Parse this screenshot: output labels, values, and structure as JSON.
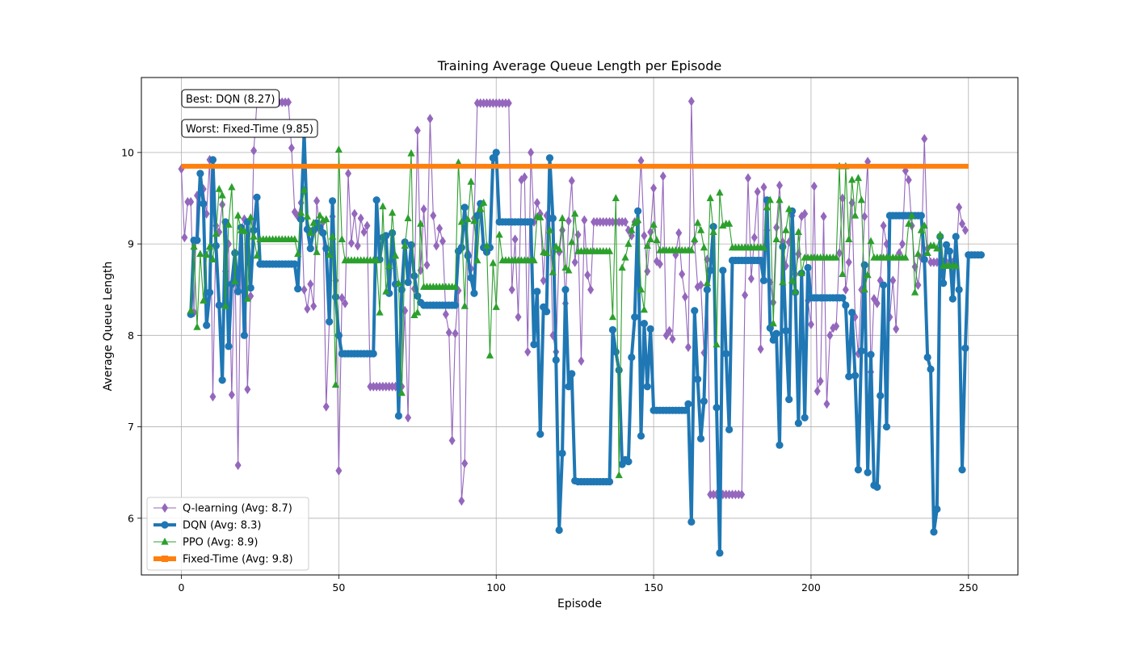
{
  "chart_data": {
    "type": "line",
    "title": "Training Average Queue Length per Episode",
    "xlabel": "Episode",
    "ylabel": "Average Queue Length",
    "xlim": [
      -12.7,
      265.7
    ],
    "ylim": [
      5.38,
      10.82
    ],
    "xticks": [
      0,
      50,
      100,
      150,
      200,
      250
    ],
    "yticks": [
      6,
      7,
      8,
      9,
      10
    ],
    "grid": true,
    "legend_position": "lower-left",
    "annotations": [
      {
        "text": "Best: DQN (8.27)"
      },
      {
        "text": "Worst: Fixed-Time (9.85)"
      }
    ],
    "series": [
      {
        "name": "Q-learning (Avg: 8.7)",
        "color": "#9467bd",
        "marker": "diamond",
        "x_start": 0,
        "values": [
          9.82,
          9.07,
          9.46,
          9.46,
          8.25,
          9.53,
          9.56,
          9.6,
          9.33,
          9.92,
          7.33,
          9.2,
          9.13,
          9.43,
          8.7,
          9.0,
          7.35,
          8.9,
          6.58,
          9.17,
          9.27,
          7.41,
          8.43,
          10.02,
          10.55,
          10.55,
          10.55,
          10.55,
          10.55,
          10.55,
          10.55,
          10.55,
          10.55,
          10.55,
          10.55,
          10.05,
          9.35,
          9.3,
          9.45,
          8.5,
          8.29,
          8.56,
          8.32,
          9.47,
          9.15,
          9.24,
          7.22,
          8.15,
          9.3,
          8.6,
          6.52,
          8.41,
          8.35,
          9.77,
          9.01,
          9.33,
          8.98,
          9.28,
          9.13,
          9.2,
          7.44,
          7.44,
          7.44,
          7.44,
          7.44,
          7.44,
          7.44,
          7.44,
          7.44,
          7.44,
          7.44,
          8.27,
          7.1,
          8.97,
          8.51,
          10.24,
          8.71,
          9.38,
          8.77,
          10.37,
          9.31,
          8.98,
          9.17,
          9.03,
          8.23,
          8.03,
          6.85,
          8.02,
          8.49,
          6.19,
          6.6,
          8.9,
          8.73,
          9.28,
          10.54,
          10.54,
          10.54,
          10.54,
          10.54,
          10.54,
          10.54,
          10.54,
          10.54,
          10.54,
          10.54,
          8.5,
          9.05,
          8.2,
          9.7,
          9.73,
          7.82,
          10.0,
          9.24,
          9.45,
          9.33,
          8.6,
          9.31,
          9.28,
          8.0,
          7.82,
          8.91,
          9.15,
          8.35,
          9.25,
          9.69,
          8.8,
          9.1,
          7.72,
          9.26,
          8.66,
          8.5,
          9.24,
          9.24,
          9.24,
          9.24,
          9.24,
          9.24,
          9.24,
          9.24,
          9.24,
          9.24,
          9.24,
          9.15,
          9.09,
          9.24,
          9.24,
          9.91,
          9.09,
          8.7,
          9.13,
          9.61,
          8.81,
          8.78,
          9.74,
          8.0,
          8.05,
          7.96,
          8.88,
          9.12,
          8.67,
          8.42,
          7.87,
          10.56,
          9.03,
          8.53,
          8.55,
          7.81,
          8.83,
          6.26,
          6.26,
          6.26,
          6.26,
          6.26,
          6.26,
          6.26,
          6.26,
          6.26,
          6.26,
          6.26,
          8.44,
          9.72,
          8.62,
          9.07,
          9.57,
          7.85,
          9.62,
          9.15,
          8.58,
          8.36,
          9.18,
          9.64,
          9.02,
          8.76,
          9.02,
          9.31,
          8.67,
          8.89,
          9.3,
          9.33,
          8.38,
          8.12,
          9.63,
          7.39,
          7.5,
          9.3,
          7.25,
          8.0,
          8.08,
          8.1,
          8.9,
          9.5,
          8.5,
          8.8,
          9.45,
          8.2,
          7.8,
          8.5,
          9.3,
          9.9,
          7.6,
          8.4,
          8.35,
          8.6,
          9.2,
          9.0,
          8.2,
          8.6,
          8.07,
          8.9,
          9.0,
          9.8,
          9.7,
          9.2,
          8.75,
          8.55,
          8.85,
          10.15,
          8.95,
          8.8,
          8.8,
          8.8,
          8.8,
          8.8,
          8.8,
          8.8,
          8.8,
          8.8,
          9.4,
          9.22,
          9.15
        ]
      },
      {
        "name": "DQN (Avg: 8.3)",
        "color": "#1f77b4",
        "marker": "circle",
        "x_start": 3,
        "values": [
          8.23,
          9.04,
          9.04,
          9.77,
          9.44,
          8.11,
          8.47,
          9.92,
          8.98,
          8.33,
          7.51,
          9.24,
          7.88,
          8.56,
          8.9,
          8.48,
          9.18,
          8.0,
          9.24,
          8.52,
          9.15,
          9.51,
          8.78,
          8.78,
          8.78,
          8.78,
          8.78,
          8.78,
          8.78,
          8.78,
          8.78,
          8.78,
          8.78,
          8.78,
          8.51,
          9.27,
          10.22,
          9.16,
          8.95,
          9.15,
          9.23,
          9.18,
          9.12,
          8.95,
          8.15,
          9.47,
          8.42,
          8.0,
          7.8,
          7.8,
          7.8,
          7.8,
          7.8,
          7.8,
          7.8,
          7.8,
          7.8,
          7.8,
          7.8,
          9.48,
          8.83,
          9.07,
          9.09,
          8.46,
          9.12,
          8.56,
          7.12,
          8.5,
          9.02,
          8.58,
          8.99,
          8.65,
          8.43,
          8.36,
          8.33,
          8.33,
          8.33,
          8.33,
          8.33,
          8.33,
          8.33,
          8.33,
          8.33,
          8.33,
          8.33,
          8.92,
          8.96,
          9.4,
          8.87,
          8.63,
          8.46,
          9.31,
          9.44,
          8.96,
          8.91,
          8.96,
          9.94,
          10.0,
          9.24,
          9.24,
          9.24,
          9.24,
          9.24,
          9.24,
          9.24,
          9.24,
          9.24,
          9.24,
          9.24,
          7.9,
          8.48,
          6.92,
          8.31,
          8.26,
          9.94,
          9.28,
          7.73,
          5.87,
          6.71,
          8.5,
          7.44,
          7.58,
          6.41,
          6.4,
          6.4,
          6.4,
          6.4,
          6.4,
          6.4,
          6.4,
          6.4,
          6.4,
          6.4,
          6.4,
          8.06,
          7.82,
          7.62,
          6.59,
          6.64,
          6.62,
          7.76,
          8.2,
          9.36,
          6.9,
          8.13,
          7.44,
          8.07,
          7.18,
          7.18,
          7.18,
          7.18,
          7.18,
          7.18,
          7.18,
          7.18,
          7.18,
          7.18,
          7.18,
          7.25,
          5.96,
          8.27,
          7.52,
          6.87,
          7.28,
          8.5,
          8.71,
          9.19,
          7.21,
          5.62,
          8.71,
          7.8,
          6.97,
          8.82,
          8.82,
          8.82,
          8.82,
          8.82,
          8.82,
          8.82,
          8.82,
          8.82,
          8.82,
          8.6,
          9.48,
          8.08,
          7.95,
          8.02,
          6.8,
          8.97,
          8.05,
          7.3,
          9.36,
          8.47,
          7.04,
          8.68,
          7.1,
          8.74,
          8.41,
          8.41,
          8.41,
          8.41,
          8.41,
          8.41,
          8.41,
          8.41,
          8.41,
          8.41,
          8.41,
          8.33,
          7.55,
          8.25,
          7.56,
          6.53,
          7.83,
          8.77,
          6.5,
          7.79,
          6.36,
          6.34,
          7.34,
          8.55,
          7.0,
          9.31,
          9.31,
          9.31,
          9.31,
          9.31,
          9.31,
          9.31,
          9.31,
          9.31,
          9.31,
          9.31,
          8.83,
          7.76,
          7.63,
          5.85,
          6.1,
          9.08,
          8.57,
          8.99,
          8.92,
          8.4,
          9.08,
          8.5,
          6.53,
          7.86,
          8.88,
          8.88,
          8.88,
          8.88,
          8.88
        ]
      },
      {
        "name": "PPO (Avg: 8.9)",
        "color": "#2ca02c",
        "marker": "triangle",
        "x_start": 3,
        "values": [
          8.27,
          8.97,
          8.09,
          8.89,
          8.38,
          8.88,
          8.97,
          8.83,
          9.11,
          9.6,
          9.53,
          8.32,
          9.21,
          9.62,
          8.59,
          9.31,
          9.15,
          9.14,
          8.4,
          9.29,
          9.08,
          8.87,
          9.05,
          9.05,
          9.05,
          9.05,
          9.05,
          9.05,
          9.05,
          9.05,
          9.05,
          9.05,
          9.05,
          9.05,
          8.89,
          9.34,
          9.59,
          9.3,
          9.12,
          9.23,
          8.91,
          9.31,
          9.26,
          9.27,
          8.88,
          9.08,
          7.46,
          10.03,
          9.05,
          8.82,
          8.82,
          8.82,
          8.82,
          8.82,
          8.82,
          8.82,
          8.82,
          8.82,
          8.82,
          8.82,
          8.25,
          9.41,
          8.48,
          8.76,
          9.34,
          8.87,
          8.57,
          7.37,
          8.98,
          9.28,
          9.99,
          8.22,
          8.25,
          9.22,
          8.53,
          8.53,
          8.53,
          8.53,
          8.53,
          8.53,
          8.53,
          8.53,
          8.53,
          8.53,
          8.53,
          9.89,
          9.24,
          8.32,
          9.27,
          9.68,
          9.25,
          8.82,
          9.38,
          9.45,
          8.98,
          7.78,
          8.79,
          8.31,
          9.1,
          8.82,
          8.82,
          8.82,
          8.82,
          8.82,
          8.82,
          8.82,
          8.82,
          8.82,
          8.82,
          8.82,
          9.3,
          9.29,
          8.91,
          8.9,
          9.15,
          8.69,
          8.97,
          8.94,
          9.28,
          8.74,
          8.71,
          9.02,
          9.33,
          8.92,
          8.92,
          8.92,
          8.92,
          8.92,
          8.92,
          8.92,
          8.92,
          8.92,
          8.92,
          8.92,
          8.2,
          9.5,
          6.47,
          8.74,
          8.85,
          9.0,
          9.15,
          9.23,
          9.26,
          8.5,
          8.28,
          8.98,
          9.05,
          9.21,
          9.04,
          8.93,
          8.93,
          8.93,
          8.93,
          8.93,
          8.93,
          8.93,
          8.93,
          8.93,
          8.93,
          8.93,
          9.05,
          9.23,
          9.15,
          8.96,
          8.57,
          9.5,
          9.13,
          7.9,
          9.56,
          9.2,
          9.22,
          9.22,
          8.96,
          8.96,
          8.96,
          8.96,
          8.96,
          8.96,
          8.96,
          8.96,
          8.96,
          8.96,
          8.96,
          9.4,
          9.48,
          8.13,
          9.05,
          9.48,
          8.58,
          9.15,
          9.38,
          8.6,
          8.48,
          9.13,
          8.68,
          8.85,
          8.85,
          8.85,
          8.85,
          8.85,
          8.85,
          8.85,
          8.85,
          8.85,
          8.85,
          8.85,
          9.85,
          8.67,
          9.85,
          9.05,
          9.7,
          9.31,
          9.72,
          9.48,
          8.5,
          8.66,
          9.03,
          8.85,
          8.85,
          8.85,
          8.85,
          8.85,
          8.85,
          8.85,
          8.85,
          8.85,
          8.85,
          8.85,
          9.22,
          9.31,
          8.47,
          8.89,
          9.15,
          9.2,
          8.9,
          8.98,
          8.98,
          8.95,
          9.1,
          8.76,
          8.76,
          8.76,
          8.76,
          8.76
        ]
      },
      {
        "name": "Fixed-Time (Avg: 9.8)",
        "color": "#ff7f0e",
        "marker": "square",
        "x_start": 0,
        "constant": 9.85,
        "count": 251
      }
    ]
  }
}
